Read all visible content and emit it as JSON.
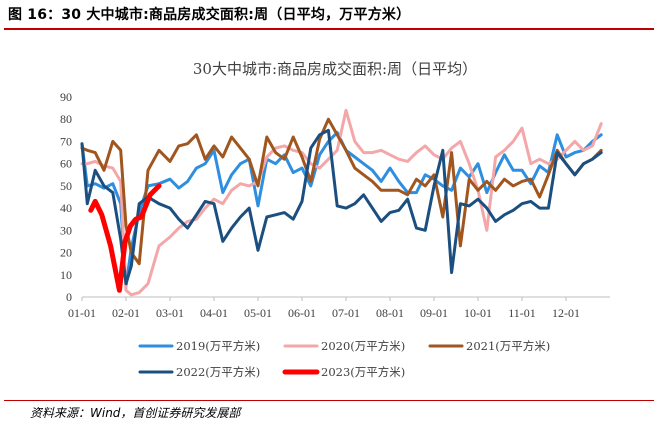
{
  "figure_label": "图 16：30 大中城市:商品房成交面积:周（日平均，万平方米）",
  "source": "资料来源：Wind，首创证券研究发展部",
  "colors": {
    "2019": "#2e8ee0",
    "2020": "#f4a7a9",
    "2021": "#a0561e",
    "2022": "#1b4f80",
    "2023": "#ff0000"
  },
  "chart_data": {
    "type": "line",
    "title": "30大中城市:商品房成交面积:周（日平均）",
    "xlabel": "",
    "ylabel": "",
    "ylim": [
      0,
      90
    ],
    "yticks": [
      "0",
      "10",
      "20",
      "30",
      "40",
      "50",
      "60",
      "70",
      "80",
      "90"
    ],
    "xlim": [
      1,
      13
    ],
    "xticks": [
      "01-01",
      "02-01",
      "03-01",
      "04-01",
      "05-01",
      "06-01",
      "07-01",
      "08-01",
      "09-01",
      "10-01",
      "11-01",
      "12-01"
    ],
    "legend_position": "bottom",
    "series": [
      {
        "name": "2019(万平方米)",
        "x": [
          1.0,
          1.12,
          1.3,
          1.5,
          1.7,
          1.88,
          2.0,
          2.12,
          2.3,
          2.5,
          2.75,
          3.0,
          3.2,
          3.4,
          3.6,
          3.8,
          4.0,
          4.2,
          4.4,
          4.6,
          4.8,
          5.0,
          5.2,
          5.4,
          5.6,
          5.8,
          6.0,
          6.2,
          6.4,
          6.6,
          6.8,
          7.0,
          7.2,
          7.4,
          7.6,
          7.8,
          8.0,
          8.2,
          8.4,
          8.6,
          8.8,
          9.0,
          9.2,
          9.4,
          9.6,
          9.8,
          10.0,
          10.2,
          10.4,
          10.6,
          10.8,
          11.0,
          11.2,
          11.4,
          11.6,
          11.8,
          12.0,
          12.2,
          12.4,
          12.6,
          12.8
        ],
        "values": [
          69,
          50,
          51,
          49,
          51,
          42,
          5,
          22,
          38,
          50,
          51,
          53,
          49,
          52,
          58,
          60,
          66,
          47,
          55,
          60,
          62,
          41,
          62,
          60,
          64,
          56,
          58,
          50,
          64,
          70,
          74,
          66,
          63,
          60,
          57,
          52,
          58,
          52,
          47,
          47,
          55,
          53,
          50,
          48,
          58,
          54,
          60,
          47,
          56,
          64,
          57,
          57,
          51,
          59,
          56,
          73,
          63,
          65,
          66,
          70,
          73
        ]
      },
      {
        "name": "2020(万平方米)",
        "x": [
          1.0,
          1.12,
          1.3,
          1.5,
          1.7,
          1.88,
          2.0,
          2.12,
          2.3,
          2.5,
          2.75,
          3.0,
          3.2,
          3.4,
          3.6,
          3.8,
          4.0,
          4.2,
          4.4,
          4.6,
          4.8,
          5.0,
          5.2,
          5.4,
          5.6,
          5.8,
          6.0,
          6.2,
          6.4,
          6.6,
          6.8,
          7.0,
          7.2,
          7.4,
          7.6,
          7.8,
          8.0,
          8.2,
          8.4,
          8.6,
          8.8,
          9.0,
          9.2,
          9.4,
          9.6,
          9.8,
          10.0,
          10.2,
          10.4,
          10.6,
          10.8,
          11.0,
          11.2,
          11.4,
          11.6,
          11.8,
          12.0,
          12.2,
          12.4,
          12.6,
          12.8
        ],
        "values": [
          60,
          60,
          61,
          59,
          58,
          52,
          3,
          1,
          2,
          6,
          23,
          27,
          31,
          34,
          35,
          40,
          44,
          42,
          48,
          51,
          50,
          52,
          63,
          67,
          68,
          66,
          65,
          60,
          58,
          62,
          66,
          84,
          70,
          65,
          65,
          66,
          64,
          62,
          61,
          65,
          68,
          64,
          62,
          67,
          70,
          60,
          48,
          30,
          63,
          66,
          70,
          76,
          60,
          62,
          60,
          62,
          66,
          70,
          66,
          68,
          78
        ]
      },
      {
        "name": "2021(万平方米)",
        "x": [
          1.0,
          1.12,
          1.3,
          1.5,
          1.7,
          1.88,
          2.0,
          2.12,
          2.3,
          2.5,
          2.75,
          3.0,
          3.2,
          3.4,
          3.6,
          3.8,
          4.0,
          4.2,
          4.4,
          4.6,
          4.8,
          5.0,
          5.2,
          5.4,
          5.6,
          5.8,
          6.0,
          6.2,
          6.4,
          6.6,
          6.8,
          7.0,
          7.2,
          7.4,
          7.6,
          7.8,
          8.0,
          8.2,
          8.4,
          8.6,
          8.8,
          9.0,
          9.2,
          9.4,
          9.6,
          9.8,
          10.0,
          10.2,
          10.4,
          10.6,
          10.8,
          11.0,
          11.2,
          11.4,
          11.6,
          11.8,
          12.0,
          12.2,
          12.4,
          12.6,
          12.8
        ],
        "values": [
          67,
          66,
          65,
          57,
          70,
          66,
          32,
          20,
          15,
          57,
          66,
          61,
          68,
          69,
          73,
          62,
          68,
          63,
          72,
          67,
          62,
          50,
          72,
          65,
          62,
          72,
          63,
          52,
          71,
          80,
          73,
          66,
          58,
          55,
          52,
          48,
          48,
          48,
          46,
          53,
          50,
          55,
          36,
          65,
          23,
          53,
          48,
          52,
          48,
          53,
          50,
          52,
          53,
          45,
          55,
          66,
          60,
          55,
          60,
          62,
          66
        ]
      },
      {
        "name": "2022(万平方米)",
        "x": [
          1.0,
          1.12,
          1.3,
          1.5,
          1.7,
          1.88,
          2.0,
          2.12,
          2.3,
          2.5,
          2.75,
          3.0,
          3.2,
          3.4,
          3.6,
          3.8,
          4.0,
          4.2,
          4.4,
          4.6,
          4.8,
          5.0,
          5.2,
          5.4,
          5.6,
          5.8,
          6.0,
          6.2,
          6.4,
          6.6,
          6.8,
          7.0,
          7.2,
          7.4,
          7.6,
          7.8,
          8.0,
          8.2,
          8.4,
          8.6,
          8.8,
          9.0,
          9.2,
          9.4,
          9.6,
          9.8,
          10.0,
          10.2,
          10.4,
          10.6,
          10.8,
          11.0,
          11.2,
          11.4,
          11.6,
          11.8,
          12.0,
          12.2,
          12.4,
          12.6,
          12.8
        ],
        "values": [
          69,
          42,
          57,
          50,
          47,
          26,
          6,
          14,
          42,
          45,
          42,
          40,
          35,
          31,
          37,
          43,
          42,
          25,
          31,
          36,
          40,
          21,
          36,
          37,
          38,
          35,
          43,
          67,
          73,
          75,
          41,
          40,
          42,
          46,
          40,
          34,
          38,
          39,
          44,
          31,
          30,
          50,
          66,
          11,
          42,
          41,
          44,
          40,
          34,
          37,
          39,
          42,
          43,
          40,
          40,
          65,
          60,
          55,
          60,
          62,
          65
        ]
      },
      {
        "name": "2023(万平方米)",
        "x": [
          1.2,
          1.3,
          1.45,
          1.65,
          1.85,
          1.98,
          2.1,
          2.22,
          2.35,
          2.55,
          2.75
        ],
        "values": [
          39,
          43,
          37,
          23,
          3,
          25,
          32,
          35,
          36,
          46,
          50
        ]
      }
    ]
  }
}
